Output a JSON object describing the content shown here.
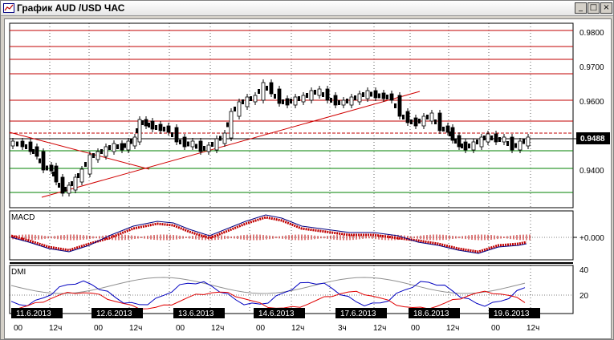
{
  "window": {
    "title": "График AUD /USD  ЧАС",
    "minimize_label": "_",
    "maximize_label": "□",
    "close_label": "×"
  },
  "price_panel": {
    "current_price": "0.9488",
    "y_ticks": [
      "0.9800",
      "0.9700",
      "0.9600",
      "0.9400"
    ]
  },
  "macd_panel": {
    "label": "MACD",
    "zero_label": "+0.000"
  },
  "dmi_panel": {
    "label": "DMI",
    "y_ticks": [
      "40",
      "20"
    ]
  },
  "time_axis": {
    "dates": [
      "11.6.2013",
      "12.6.2013",
      "13.6.2013",
      "14.6.2013",
      "17.6.2013",
      "18.6.2013",
      "19.6.2013"
    ],
    "hours": [
      {
        "a": "00",
        "b": "12ч"
      },
      {
        "a": "00",
        "b": "12ч"
      },
      {
        "a": "00",
        "b": "12ч"
      },
      {
        "a": "00",
        "b": "12ч"
      },
      {
        "a": "3ч",
        "b": "12ч"
      },
      {
        "a": "00",
        "b": "12ч"
      },
      {
        "a": "00",
        "b": "12ч"
      }
    ]
  },
  "colors": {
    "resistance": "#c00000",
    "support": "#008000",
    "trendline": "#d00000",
    "macd_line": "#000080",
    "macd_signal": "#c00000",
    "dmi_plus": "#0000c0",
    "dmi_minus": "#e00000",
    "adx": "#808080"
  }
}
